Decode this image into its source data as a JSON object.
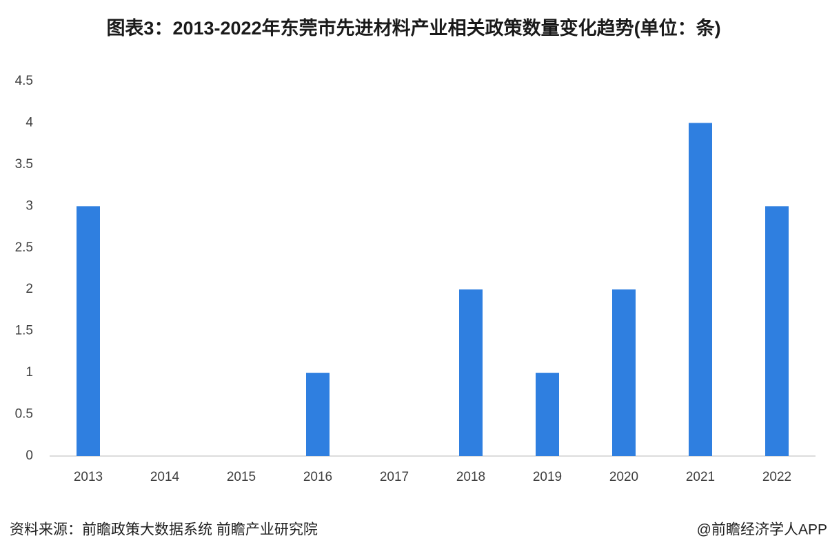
{
  "chart_data": {
    "type": "bar",
    "title": "图表3：2013-2022年东莞市先进材料产业相关政策数量变化趋势(单位：条)",
    "categories": [
      "2013",
      "2014",
      "2015",
      "2016",
      "2017",
      "2018",
      "2019",
      "2020",
      "2021",
      "2022"
    ],
    "values": [
      3,
      0,
      0,
      1,
      0,
      2,
      1,
      2,
      4,
      3
    ],
    "color": "#2f7fe0",
    "ylim": [
      0,
      4.5
    ],
    "yticks": [
      0,
      0.5,
      1,
      1.5,
      2,
      2.5,
      3,
      3.5,
      4,
      4.5
    ],
    "grid": false,
    "source": "资料来源：前瞻政策大数据系统 前瞻产业研究院",
    "credit": "@前瞻经济学人APP"
  }
}
